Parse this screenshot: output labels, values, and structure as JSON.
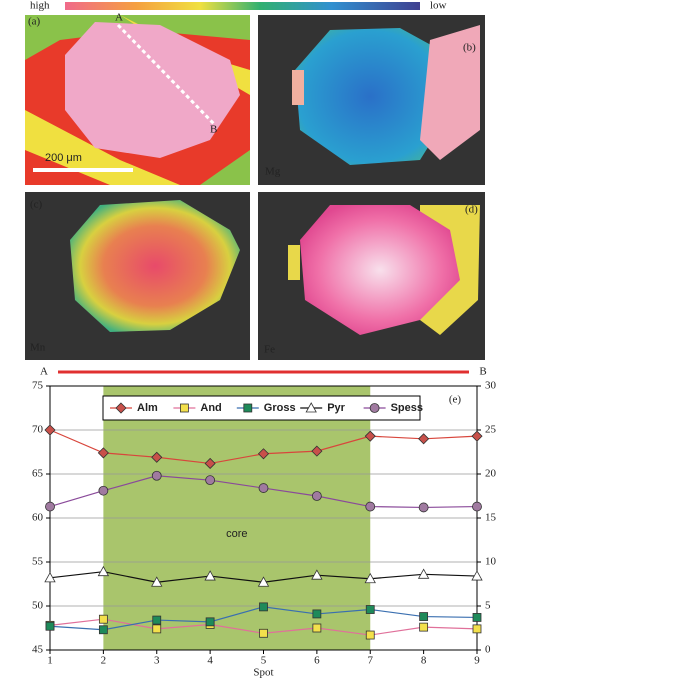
{
  "figure": {
    "scale_high": "high",
    "scale_low": "low",
    "panel_a": "(a)",
    "panel_b": "(b)",
    "panel_c": "(c)",
    "panel_d": "(d)",
    "map_b": "Mg",
    "map_c": "Mn",
    "map_d": "Fe",
    "scale_bar": "200 μm",
    "profile_start": "A",
    "profile_end": "B"
  },
  "chart_data": {
    "type": "line",
    "panel_label": "(e)",
    "xlabel": "Spot",
    "x": [
      1,
      2,
      3,
      4,
      5,
      6,
      7,
      8,
      9
    ],
    "xlim": [
      1,
      9
    ],
    "xticks": [
      1,
      2,
      3,
      4,
      5,
      6,
      7,
      8,
      9
    ],
    "ylim": [
      45,
      75
    ],
    "yticks": [
      45,
      50,
      55,
      60,
      65,
      70,
      75
    ],
    "y2lim": [
      0,
      30
    ],
    "y2ticks": [
      0,
      5,
      10,
      15,
      20,
      25,
      30
    ],
    "grid": true,
    "profile_start": "A",
    "profile_end": "B",
    "shaded_region": {
      "label": "core",
      "x": [
        2,
        7
      ],
      "color": "#a9c56c"
    },
    "series": [
      {
        "name": "Alm",
        "color": "#d8463c",
        "marker": "diamond",
        "marker_color": "#c8504a",
        "values": [
          70,
          67.4,
          66.9,
          66.2,
          67.3,
          67.6,
          69.3,
          69.0,
          69.3
        ]
      },
      {
        "name": "And",
        "color": "#e0709a",
        "marker": "square",
        "marker_color": "#f3e04c",
        "axis": "y2",
        "values": [
          2.8,
          3.5,
          2.4,
          2.9,
          1.9,
          2.5,
          1.7,
          2.6,
          2.4
        ]
      },
      {
        "name": "Gross",
        "color": "#3a6fb0",
        "marker": "square",
        "marker_color": "#1e8a5a",
        "axis": "y2",
        "values": [
          2.7,
          2.3,
          3.4,
          3.2,
          4.9,
          4.1,
          4.6,
          3.8,
          3.7
        ]
      },
      {
        "name": "Pyr",
        "color": "#111111",
        "marker": "triangle",
        "marker_color": "#ffffff",
        "axis": "y2",
        "values": [
          8.2,
          8.9,
          7.7,
          8.4,
          7.7,
          8.5,
          8.1,
          8.6,
          8.4
        ]
      },
      {
        "name": "Spess",
        "color": "#8a4a9a",
        "marker": "circle",
        "marker_color": "#a07aa0",
        "axis": "y2",
        "values": [
          16.3,
          18.1,
          19.8,
          19.3,
          18.4,
          17.5,
          16.3,
          16.2,
          16.3
        ]
      }
    ]
  }
}
